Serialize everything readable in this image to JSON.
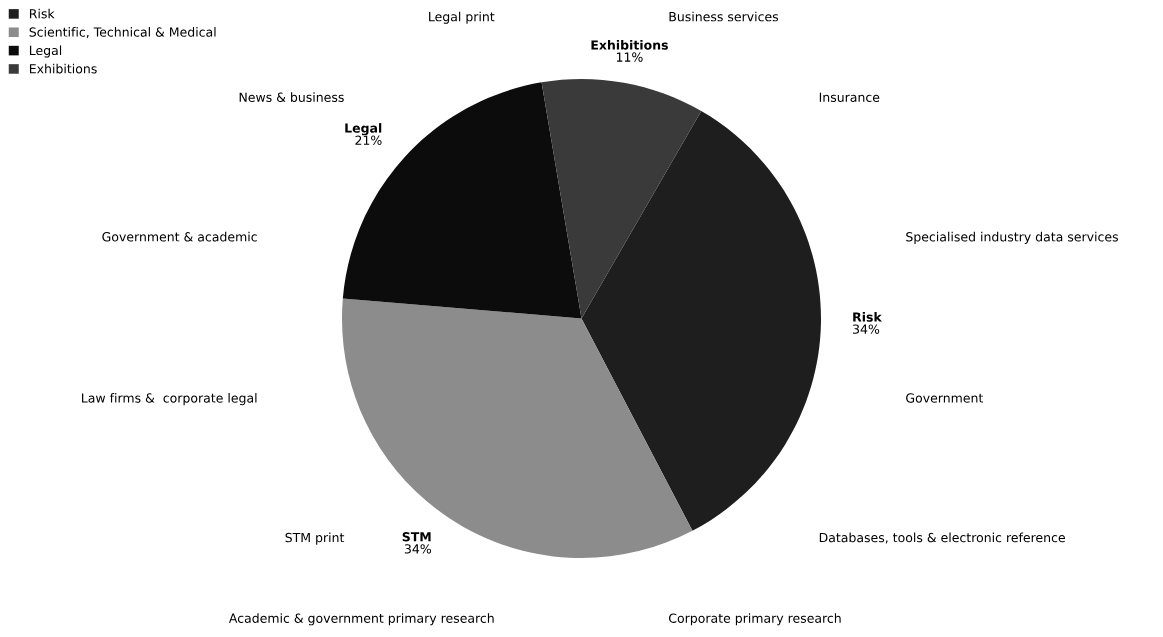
{
  "chart_data": {
    "type": "pie",
    "categories": [
      "Risk",
      "Scientific, Technical & Medical",
      "Legal",
      "Exhibitions"
    ],
    "values": [
      34,
      34,
      21,
      11
    ],
    "colors": [
      "#1e1e1e",
      "#8c8c8c",
      "#0c0c0c",
      "#3a3a3a"
    ],
    "value_labels": [
      "Risk\n34%",
      "STM\n34%",
      "Legal\n21%",
      "Exhibitions\n11%"
    ],
    "legend": "top left",
    "annotations": [
      "Business services",
      "Insurance",
      "Specialised industry data services",
      "Government",
      "Databases, tools & electronic reference",
      "Corporate primary research",
      "Academic & government primary research",
      "STM print",
      "Law firms &  corporate legal",
      "Government & academic",
      "News & business",
      "Legal print"
    ]
  }
}
